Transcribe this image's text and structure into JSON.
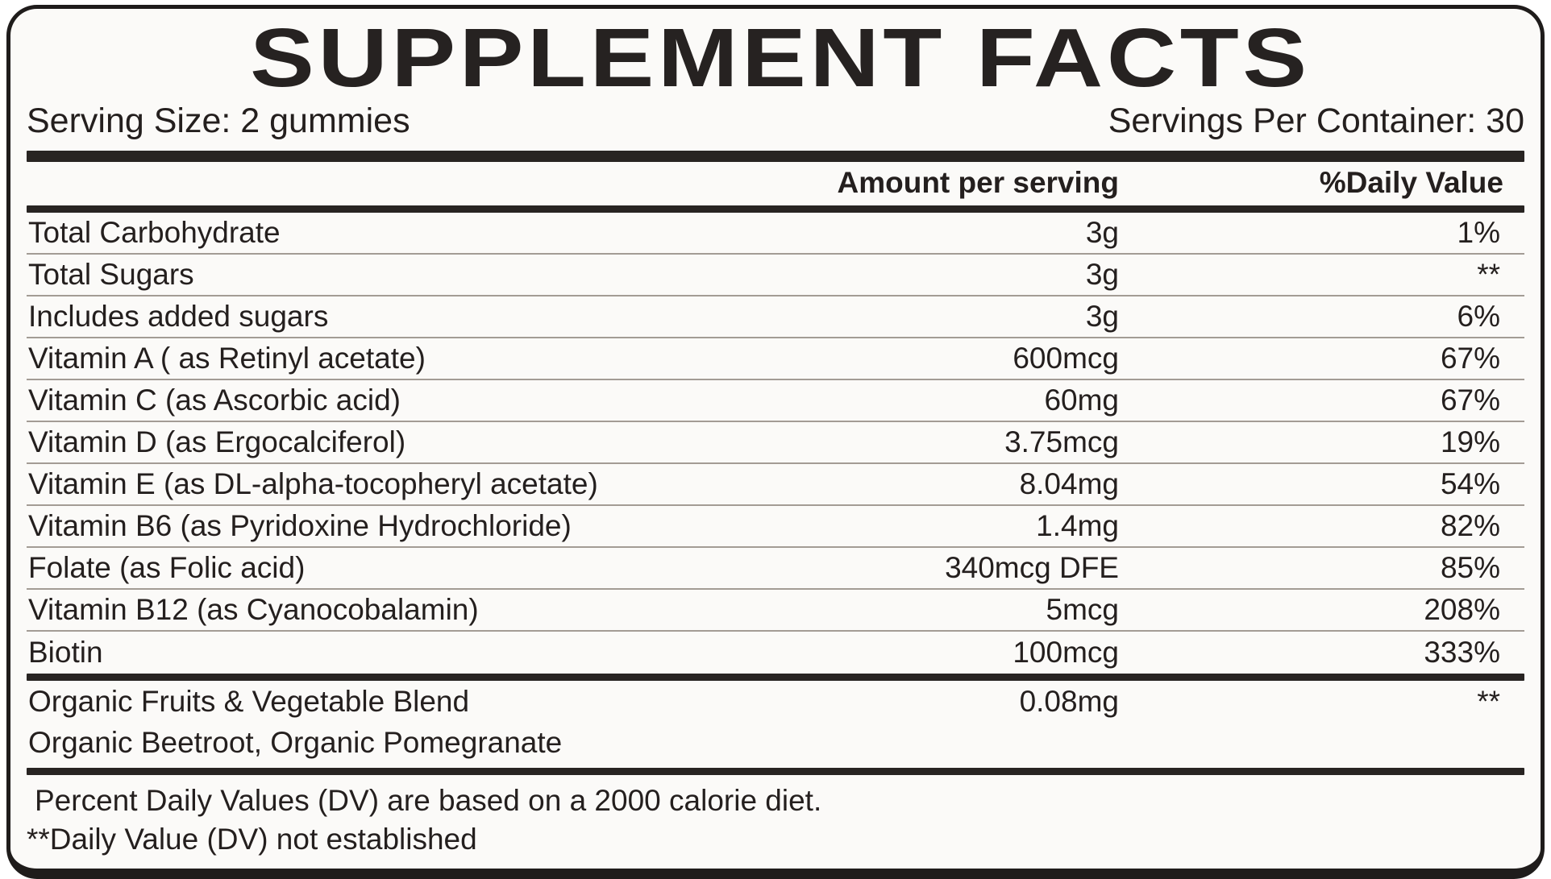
{
  "label": {
    "title": "SUPPLEMENT FACTS",
    "serving_size": "Serving Size: 2 gummies",
    "servings_per_container": "Servings Per Container: 30",
    "column_headers": {
      "amount": "Amount per serving",
      "daily_value": "%Daily Value"
    },
    "rows": [
      {
        "name": "Total Carbohydrate",
        "amount": "3g",
        "dv": "1%"
      },
      {
        "name": "Total Sugars",
        "amount": "3g",
        "dv": "**"
      },
      {
        "name": "Includes added sugars",
        "amount": "3g",
        "dv": "6%"
      },
      {
        "name": "Vitamin A ( as Retinyl acetate)",
        "amount": "600mcg",
        "dv": "67%"
      },
      {
        "name": "Vitamin C (as Ascorbic acid)",
        "amount": "60mg",
        "dv": "67%"
      },
      {
        "name": "Vitamin D (as Ergocalciferol)",
        "amount": "3.75mcg",
        "dv": "19%"
      },
      {
        "name": "Vitamin E (as DL-alpha-tocopheryl acetate)",
        "amount": "8.04mg",
        "dv": "54%"
      },
      {
        "name": "Vitamin B6 (as Pyridoxine Hydrochloride)",
        "amount": "1.4mg",
        "dv": "82%"
      },
      {
        "name": "Folate (as Folic acid)",
        "amount": "340mcg DFE",
        "dv": "85%"
      },
      {
        "name": "Vitamin B12 (as Cyanocobalamin)",
        "amount": "5mcg",
        "dv": "208%"
      },
      {
        "name": "Biotin",
        "amount": "100mcg",
        "dv": "333%"
      }
    ],
    "blend": {
      "name": "Organic Fruits & Vegetable Blend",
      "amount": "0.08mg",
      "dv": "**",
      "ingredients": "Organic Beetroot, Organic Pomegranate"
    },
    "footnotes": [
      "Percent Daily Values (DV) are based on a 2000 calorie diet.",
      "**Daily Value (DV) not established"
    ],
    "colors": {
      "background": "#fbfaf8",
      "ink": "#241f1e",
      "bar": "#282422",
      "separator": "#a39c95",
      "border": "#1f1c1b"
    }
  }
}
